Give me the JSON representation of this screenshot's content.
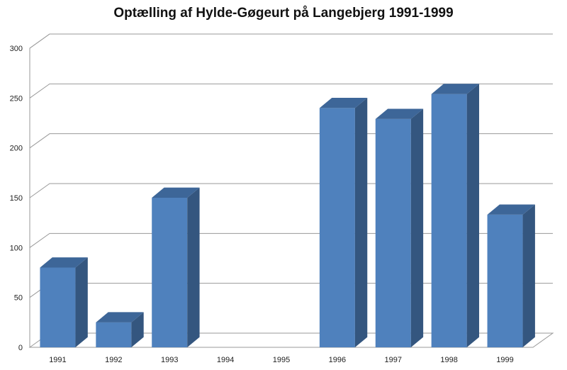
{
  "chart_data": {
    "type": "bar",
    "title": "Optælling af Hylde-Gøgeurt på Langebjerg 1991-1999",
    "categories": [
      "1991",
      "1992",
      "1993",
      "1994",
      "1995",
      "1996",
      "1997",
      "1998",
      "1999"
    ],
    "values": [
      80,
      25,
      150,
      0,
      0,
      240,
      229,
      254,
      133
    ],
    "ylim": [
      0,
      300
    ],
    "yticks": [
      0,
      50,
      100,
      150,
      200,
      250,
      300
    ],
    "grid": true,
    "legend": "none",
    "colors": {
      "bar_front": "#4f81bd",
      "bar_side": "#34567f",
      "bar_top": "#3d6698"
    }
  }
}
